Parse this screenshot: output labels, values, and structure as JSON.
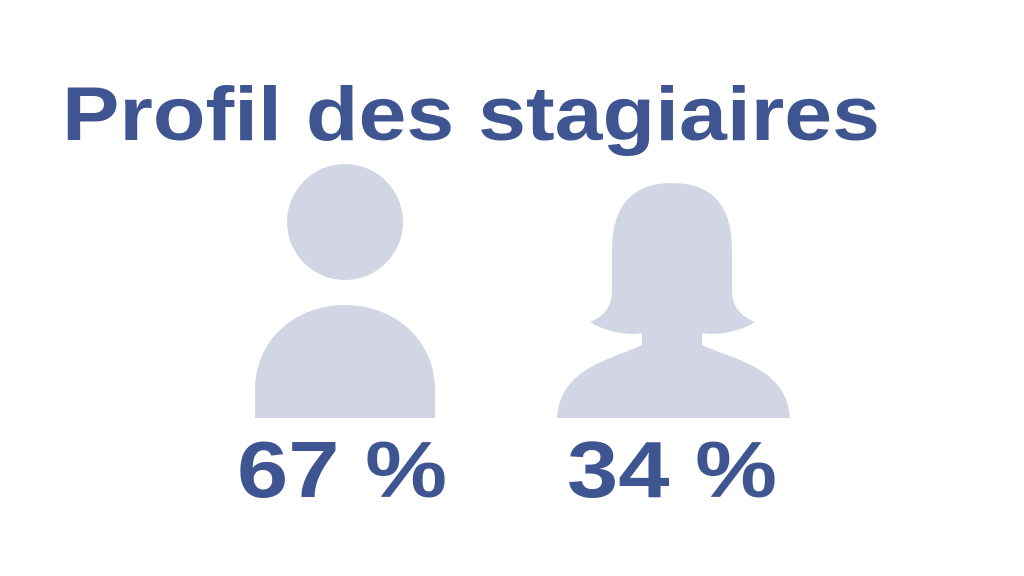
{
  "title": "Profil des stagiaires",
  "stats": [
    {
      "label": "67 %"
    },
    {
      "label": "34 %"
    }
  ]
}
